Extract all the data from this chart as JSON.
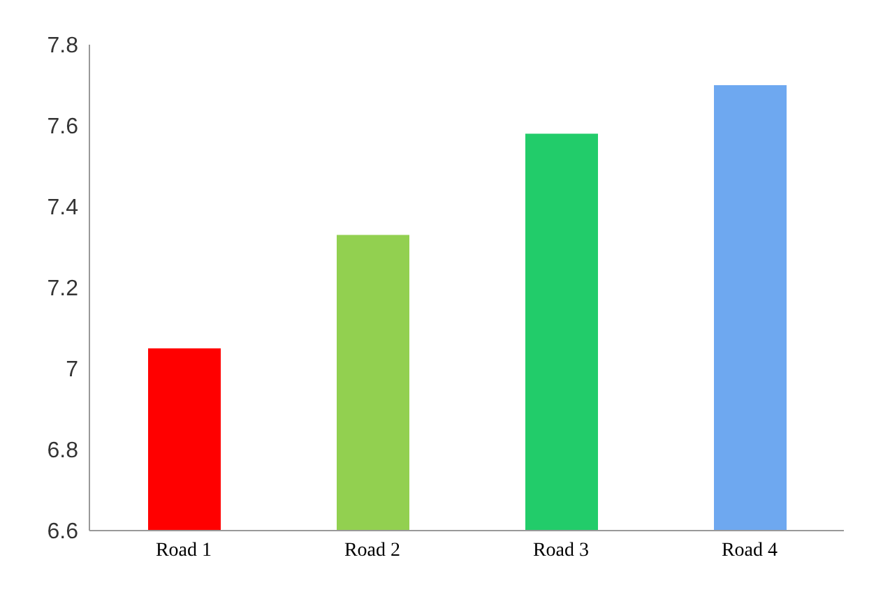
{
  "chart_data": {
    "type": "bar",
    "categories": [
      "Road 1",
      "Road 2",
      "Road 3",
      "Road 4"
    ],
    "values": [
      7.05,
      7.33,
      7.58,
      7.7
    ],
    "colors": [
      "#ff0000",
      "#92d050",
      "#22cc6a",
      "#6ea8f0"
    ],
    "ylim": [
      6.6,
      7.8
    ],
    "yticks": [
      6.6,
      6.8,
      7,
      7.2,
      7.4,
      7.6,
      7.8
    ],
    "grid": false,
    "legend": false
  }
}
